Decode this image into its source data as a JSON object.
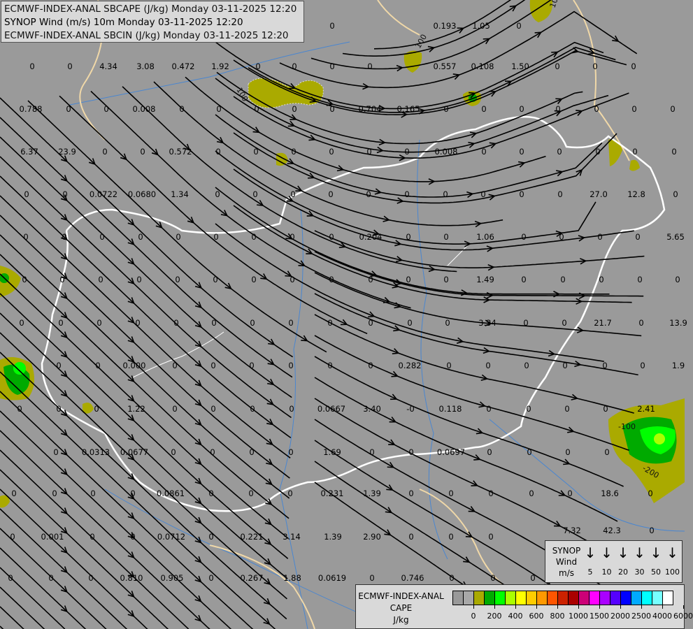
{
  "header": {
    "line1": "ECMWF-INDEX-ANAL SBCAPE (J/kg) Monday 03-11-2025 12:20",
    "line2": "SYNOP Wind (m/s) 10m Monday 03-11-2025 12:20",
    "line3": "ECMWF-INDEX-ANAL SBCIN (J/kg) Monday 03-11-2025 12:20"
  },
  "colors": {
    "background": "#9a9a9a",
    "streamline": "#000000",
    "country_border": "#ffffff",
    "region_border": "#f0d8a8",
    "river": "#4a86d0",
    "cape_low": "#aaaa00"
  },
  "station_values": [
    "0",
    "0.193",
    "1.05",
    "0",
    "0",
    "0",
    "4.34",
    "3.08",
    "0.472",
    "1.92",
    "0",
    "0",
    "0",
    "0",
    "0.557",
    "0.108",
    "1.50",
    "0",
    "0",
    "0",
    "0.788",
    "0",
    "0",
    "0.008",
    "0",
    "0",
    "0",
    "0",
    "0",
    "0.704",
    "0.165",
    "0",
    "0",
    "0",
    "0",
    "0",
    "0",
    "0",
    "6.37",
    "23.9",
    "0",
    "0",
    "0.572",
    "0",
    "0",
    "0",
    "0",
    "0",
    "0",
    "0.008",
    "0",
    "0",
    "0",
    "0",
    "0",
    "0",
    "0",
    "0",
    "0.0722",
    "0.0680",
    "1.34",
    "0",
    "0",
    "0",
    "0",
    "0",
    "0",
    "0",
    "0",
    "0",
    "0",
    "27.0",
    "12.8",
    "0",
    "0",
    "0",
    "0",
    "0",
    "0",
    "0",
    "0",
    "0",
    "0",
    "0.204",
    "0",
    "0",
    "1.06",
    "0",
    "0",
    "0",
    "0",
    "5.65",
    "0",
    "0",
    "0",
    "0",
    "0",
    "0",
    "0",
    "0",
    "0",
    "0",
    "0",
    "0",
    "1.49",
    "0",
    "0",
    "0",
    "0",
    "0",
    "0",
    "0",
    "0",
    "0",
    "0",
    "0",
    "0",
    "0",
    "0",
    "0",
    "0",
    "0",
    "3.34",
    "0",
    "0",
    "21.7",
    "0",
    "13.9",
    "0",
    "0",
    "0.000",
    "0",
    "0",
    "0",
    "0",
    "0",
    "0",
    "0.282",
    "0",
    "0",
    "0",
    "0",
    "0",
    "0",
    "1.9",
    "0",
    "0",
    "0",
    "1.22",
    "0",
    "0",
    "0",
    "0",
    "0.0667",
    "3.40",
    "-0",
    "0.118",
    "0",
    "0",
    "0",
    "0",
    "2.41",
    "0",
    "0.0313",
    "0.0677",
    "0",
    "0",
    "0",
    "0",
    "1.69",
    "0",
    "0",
    "0.0697",
    "0",
    "0",
    "0",
    "0",
    "0",
    "0",
    "0",
    "0",
    "0.0861",
    "0",
    "0",
    "0",
    "0.231",
    "1.39",
    "0",
    "0",
    "0",
    "0",
    "0",
    "18.6",
    "0",
    "0",
    "0.001",
    "0",
    "0",
    "0.0712",
    "0",
    "0.221",
    "3.14",
    "1.39",
    "2.90",
    "0",
    "0",
    "0",
    "7.32",
    "42.3",
    "0",
    "0",
    "0",
    "0",
    "0.810",
    "0.905",
    "0",
    "0.267",
    "1.88",
    "0.0619",
    "0",
    "0.746",
    "0",
    "0",
    "0"
  ],
  "cape_contour_labels": [
    "100",
    "100",
    "100",
    "-100",
    "-200"
  ],
  "wind_legend": {
    "title_lines": [
      "SYNOP",
      "Wind",
      "m/s"
    ],
    "speeds": [
      "5",
      "10",
      "20",
      "30",
      "50",
      "100"
    ],
    "arrow_icon": "arrow-down-icon"
  },
  "cape_legend": {
    "title_lines": [
      "ECMWF-INDEX-ANAL",
      "CAPE",
      "J/kg"
    ],
    "swatches": [
      "#999999",
      "#a8a8a8",
      "#aaaa00",
      "#00aa00",
      "#00ff00",
      "#aaff00",
      "#ffff00",
      "#ffcc00",
      "#ff9900",
      "#ff5500",
      "#cc2200",
      "#aa0000",
      "#cc0077",
      "#ff00ff",
      "#aa00ff",
      "#5500ff",
      "#0000ff",
      "#00aaff",
      "#00ffff",
      "#77ffff",
      "#ffffff"
    ],
    "labels": [
      "0",
      "200",
      "400",
      "600",
      "800",
      "1000",
      "1500",
      "2000",
      "2500",
      "4000",
      "6000"
    ]
  }
}
